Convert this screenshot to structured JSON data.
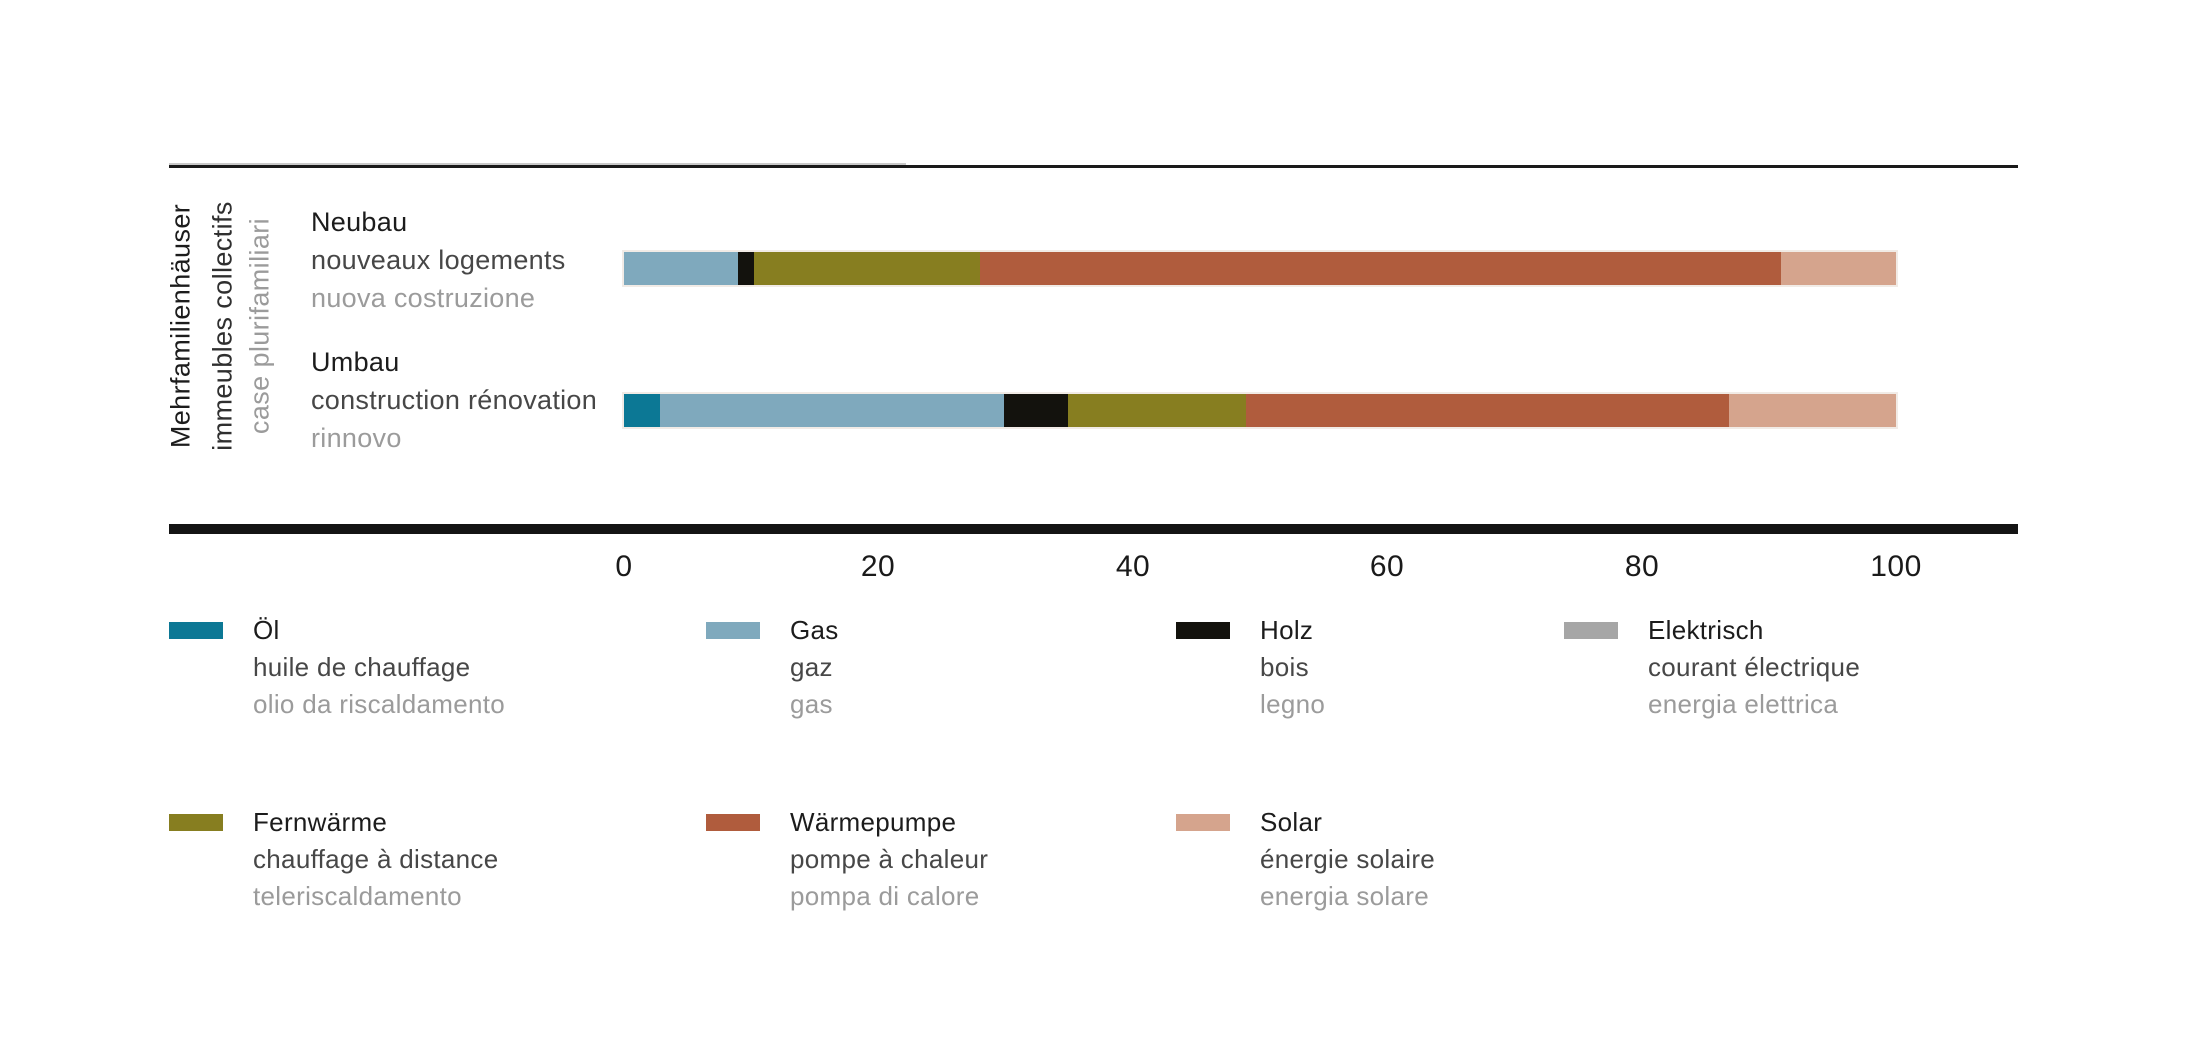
{
  "page": {
    "background": "#ffffff"
  },
  "group": {
    "label_de": "Mehrfamilienhäuser",
    "label_fr": "immeubles collectifs",
    "label_it": "case plurifamiliari"
  },
  "categories": [
    {
      "id": "neubau",
      "label_de": "Neubau",
      "label_fr": "nouveaux logements",
      "label_it": "nuova costruzione"
    },
    {
      "id": "umbau",
      "label_de": "Umbau",
      "label_fr": "construction rénovation",
      "label_it": "rinnovo"
    }
  ],
  "energy_types": [
    {
      "id": "oel",
      "color": "#0c7895",
      "label_de": "Öl",
      "label_fr": "huile de chauffage",
      "label_it": "olio da riscaldamento"
    },
    {
      "id": "gas",
      "color": "#7fa9bd",
      "label_de": "Gas",
      "label_fr": "gaz",
      "label_it": "gas"
    },
    {
      "id": "holz",
      "color": "#13120d",
      "label_de": "Holz",
      "label_fr": "bois",
      "label_it": "legno"
    },
    {
      "id": "elektrisch",
      "color": "#a6a6a6",
      "label_de": "Elektrisch",
      "label_fr": "courant électrique",
      "label_it": "energia elettrica"
    },
    {
      "id": "fernwaerme",
      "color": "#877e20",
      "label_de": "Fernwärme",
      "label_fr": "chauffage à distance",
      "label_it": "teleriscaldamento"
    },
    {
      "id": "waermepumpe",
      "color": "#b05c3d",
      "label_de": "Wärmepumpe",
      "label_fr": "pompe à chaleur",
      "label_it": "pompa di calore"
    },
    {
      "id": "solar",
      "color": "#d5a48d",
      "label_de": "Solar",
      "label_fr": "énergie solaire",
      "label_it": "energia solare"
    }
  ],
  "axis": {
    "min": 0,
    "max": 100,
    "ticks": [
      0,
      20,
      40,
      60,
      80,
      100
    ]
  },
  "chart_data": {
    "type": "bar",
    "orientation": "horizontal",
    "stacked": true,
    "unit": "percent",
    "categories": [
      "Neubau",
      "Umbau"
    ],
    "series": [
      {
        "name": "Öl",
        "values": [
          0,
          2.8
        ]
      },
      {
        "name": "Gas",
        "values": [
          9,
          27.1
        ]
      },
      {
        "name": "Holz",
        "values": [
          1.2,
          5
        ]
      },
      {
        "name": "Elektrisch",
        "values": [
          0,
          0
        ]
      },
      {
        "name": "Fernwärme",
        "values": [
          17.8,
          14
        ]
      },
      {
        "name": "Wärmepumpe",
        "values": [
          63,
          38
        ]
      },
      {
        "name": "Solar",
        "values": [
          9,
          13.1
        ]
      }
    ],
    "xlim": [
      0,
      100
    ],
    "legend_position": "bottom",
    "grid": false,
    "bars": [
      {
        "category": "neubau",
        "segments": [
          {
            "type": "gas",
            "value": 9
          },
          {
            "type": "holz",
            "value": 1.2
          },
          {
            "type": "fernwaerme",
            "value": 17.8
          },
          {
            "type": "waermepumpe",
            "value": 63
          },
          {
            "type": "solar",
            "value": 9
          }
        ]
      },
      {
        "category": "umbau",
        "segments": [
          {
            "type": "oel",
            "value": 2.8
          },
          {
            "type": "gas",
            "value": 27.1
          },
          {
            "type": "holz",
            "value": 5
          },
          {
            "type": "fernwaerme",
            "value": 14
          },
          {
            "type": "waermepumpe",
            "value": 38
          },
          {
            "type": "solar",
            "value": 13.1
          }
        ]
      }
    ]
  }
}
